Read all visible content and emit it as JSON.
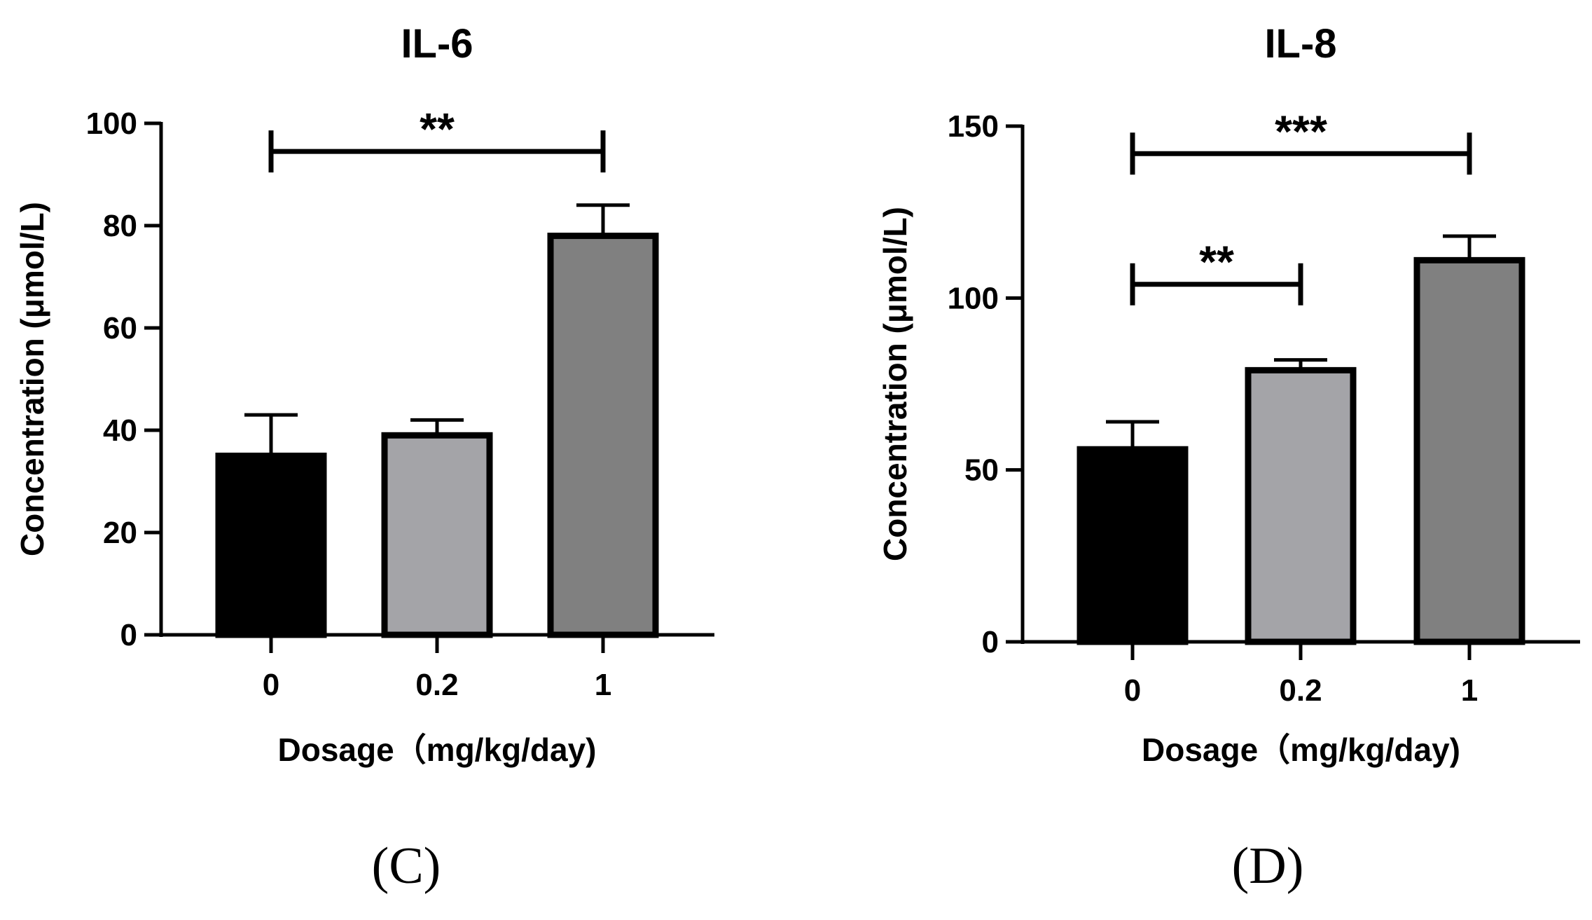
{
  "chart_data": [
    {
      "type": "bar",
      "panel_label": "(C)",
      "title": "IL-6",
      "xlabel": "Dosage（mg/kg/day)",
      "ylabel": "Concentration (μmol/L)",
      "categories": [
        "0",
        "0.2",
        "1"
      ],
      "values": [
        35,
        39,
        78
      ],
      "errors": [
        8,
        3,
        6
      ],
      "colors": [
        "#000000",
        "#a4a4a8",
        "#808080"
      ],
      "ylim": [
        0,
        100
      ],
      "yticks": [
        0,
        20,
        40,
        60,
        80,
        100
      ],
      "significance": [
        {
          "from": 0,
          "to": 2,
          "label": "**",
          "y": 94.5
        }
      ]
    },
    {
      "type": "bar",
      "panel_label": "(D)",
      "title": "IL-8",
      "xlabel": "Dosage（mg/kg/day)",
      "ylabel": "Concentration (μmol/L)",
      "categories": [
        "0",
        "0.2",
        "1"
      ],
      "values": [
        56,
        79,
        111
      ],
      "errors": [
        8,
        3,
        7
      ],
      "colors": [
        "#000000",
        "#a4a4a8",
        "#808080"
      ],
      "ylim": [
        0,
        150
      ],
      "yticks": [
        0,
        50,
        100,
        150
      ],
      "significance": [
        {
          "from": 0,
          "to": 2,
          "label": "***",
          "y": 142
        },
        {
          "from": 0,
          "to": 1,
          "label": "**",
          "y": 104
        }
      ]
    }
  ]
}
